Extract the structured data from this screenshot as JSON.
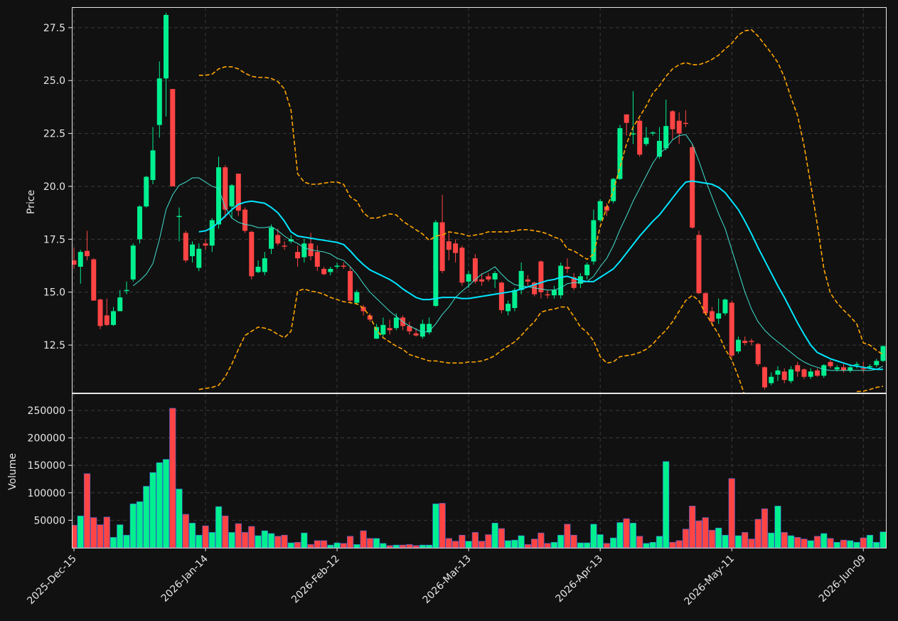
{
  "chart_data": {
    "type": "candlestick",
    "ylabel": "Price",
    "volume_ylabel": "Volume",
    "up_color": "#00f090",
    "down_color": "#ff4444",
    "grid": true,
    "categories": [
      "2025-Dec-15",
      null,
      null,
      null,
      null,
      null,
      null,
      null,
      null,
      null,
      null,
      null,
      null,
      null,
      null,
      null,
      null,
      null,
      null,
      null,
      "2026-Jan-14",
      null,
      null,
      null,
      null,
      null,
      null,
      null,
      null,
      null,
      null,
      null,
      null,
      null,
      null,
      null,
      null,
      null,
      null,
      null,
      "2026-Feb-12",
      null,
      null,
      null,
      null,
      null,
      null,
      null,
      null,
      null,
      null,
      null,
      null,
      null,
      null,
      null,
      null,
      null,
      null,
      null,
      "2026-Mar-13",
      null,
      null,
      null,
      null,
      null,
      null,
      null,
      null,
      null,
      null,
      null,
      null,
      null,
      null,
      null,
      null,
      null,
      null,
      null,
      "2026-Apr-13",
      null,
      null,
      null,
      null,
      null,
      null,
      null,
      null,
      null,
      null,
      null,
      null,
      null,
      null,
      null,
      null,
      null,
      null,
      null,
      "2026-May-11",
      null,
      null,
      null,
      null,
      null,
      null,
      null,
      null,
      null,
      null,
      null,
      null,
      null,
      null,
      null,
      null,
      null,
      null,
      null,
      "2026-Jun-09",
      null,
      null,
      null
    ],
    "open": [
      16.5,
      16.2,
      16.95,
      16.55,
      14.65,
      13.9,
      13.45,
      14.1,
      15.05,
      15.6,
      17.5,
      19.05,
      20.3,
      22.9,
      25.1,
      24.6,
      18.55,
      17.8,
      16.7,
      16.15,
      17.3,
      17.2,
      18.2,
      20.9,
      19.05,
      20.6,
      18.9,
      17.85,
      15.95,
      15.95,
      17.05,
      17.7,
      17.2,
      17.4,
      16.9,
      16.65,
      17.3,
      16.9,
      16.1,
      15.95,
      16.2,
      16.25,
      16.0,
      14.5,
      14.3,
      13.9,
      12.8,
      13.0,
      13.3,
      13.3,
      13.8,
      13.4,
      13.05,
      12.9,
      13.1,
      14.35,
      18.3,
      17.4,
      17.3,
      17.1,
      15.5,
      16.6,
      15.6,
      15.75,
      15.6,
      15.45,
      14.1,
      14.25,
      15.1,
      15.6,
      15.45,
      16.45,
      14.9,
      14.85,
      14.85,
      16.2,
      15.7,
      15.4,
      15.8,
      16.45,
      18.4,
      19.05,
      19.3,
      20.35,
      23.4,
      22.45,
      23.1,
      22.0,
      22.5,
      21.4,
      21.8,
      23.55,
      23.1,
      23.0,
      21.85,
      17.7,
      14.95,
      14.1,
      13.75,
      14.0,
      14.5,
      12.2,
      12.7,
      12.7,
      12.55,
      11.45,
      10.7,
      11.1,
      11.25,
      10.8,
      11.55,
      11.35,
      11.0,
      11.3,
      11.05,
      11.7,
      11.35,
      11.45,
      11.3,
      11.55,
      11.4,
      11.45,
      11.55,
      11.75
    ],
    "high": [
      17.1,
      17.0,
      17.9,
      16.6,
      14.7,
      14.7,
      14.3,
      15.1,
      15.5,
      17.3,
      19.1,
      20.5,
      22.8,
      25.9,
      28.2,
      24.6,
      19.0,
      17.9,
      17.4,
      17.3,
      17.5,
      18.5,
      21.4,
      21.0,
      20.1,
      20.6,
      19.0,
      17.9,
      16.5,
      16.9,
      18.2,
      18.0,
      17.4,
      17.7,
      17.2,
      17.5,
      17.8,
      17.2,
      16.2,
      16.2,
      16.4,
      16.4,
      16.2,
      15.1,
      14.4,
      14.0,
      13.5,
      13.8,
      13.7,
      14.0,
      13.9,
      13.6,
      13.3,
      13.7,
      13.8,
      18.4,
      19.6,
      17.8,
      17.5,
      17.2,
      16.0,
      16.8,
      15.9,
      15.9,
      16.0,
      15.5,
      14.6,
      15.2,
      16.4,
      15.8,
      15.5,
      16.5,
      15.1,
      15.3,
      16.4,
      16.6,
      15.9,
      15.9,
      16.4,
      18.9,
      19.4,
      19.2,
      20.4,
      22.9,
      23.4,
      24.5,
      23.2,
      22.8,
      22.6,
      22.8,
      24.1,
      23.6,
      23.5,
      23.6,
      22.0,
      17.9,
      15.0,
      14.3,
      14.7,
      14.7,
      14.6,
      12.9,
      12.9,
      12.8,
      12.6,
      11.5,
      11.2,
      11.5,
      11.4,
      11.5,
      11.7,
      11.4,
      11.4,
      11.4,
      11.6,
      11.8,
      11.55,
      11.6,
      11.6,
      11.7,
      11.7,
      11.6,
      11.85,
      12.5
    ],
    "low": [
      16.1,
      15.4,
      16.5,
      14.6,
      13.25,
      13.4,
      13.4,
      14.1,
      14.9,
      15.5,
      17.3,
      19.0,
      20.1,
      22.3,
      23.3,
      20.0,
      17.4,
      16.4,
      16.4,
      16.0,
      17.0,
      16.9,
      18.0,
      18.5,
      18.5,
      18.6,
      17.8,
      15.6,
      15.9,
      15.8,
      16.8,
      17.2,
      17.0,
      17.3,
      16.2,
      16.4,
      16.5,
      16.0,
      15.8,
      15.8,
      16.1,
      16.1,
      14.5,
      14.4,
      13.9,
      13.6,
      12.8,
      12.9,
      13.0,
      13.2,
      13.2,
      13.0,
      12.9,
      12.8,
      13.0,
      14.3,
      15.9,
      16.5,
      16.4,
      15.3,
      15.2,
      15.4,
      15.3,
      15.5,
      15.2,
      14.0,
      13.9,
      14.1,
      14.9,
      15.3,
      14.8,
      14.7,
      14.7,
      14.7,
      14.7,
      15.9,
      15.1,
      15.2,
      15.6,
      16.3,
      18.3,
      18.6,
      19.2,
      20.3,
      22.4,
      22.0,
      21.4,
      21.9,
      22.4,
      21.3,
      21.7,
      22.2,
      22.0,
      22.8,
      18.0,
      14.9,
      13.9,
      13.4,
      13.5,
      13.9,
      11.9,
      12.1,
      12.5,
      12.5,
      11.5,
      10.4,
      10.6,
      10.8,
      10.7,
      10.7,
      11.0,
      10.9,
      10.9,
      11.0,
      10.95,
      11.4,
      11.25,
      11.2,
      11.2,
      11.4,
      11.2,
      11.35,
      11.45,
      11.7
    ],
    "close": [
      16.3,
      16.9,
      16.7,
      14.6,
      13.4,
      13.45,
      14.1,
      14.75,
      15.1,
      17.2,
      19.05,
      20.45,
      21.7,
      25.1,
      28.1,
      20.0,
      18.6,
      16.5,
      17.25,
      17.05,
      17.2,
      18.4,
      20.9,
      18.9,
      20.05,
      18.85,
      17.9,
      15.75,
      16.2,
      16.6,
      18.05,
      17.3,
      17.15,
      17.5,
      16.6,
      17.3,
      16.7,
      16.2,
      15.85,
      16.1,
      16.25,
      16.2,
      14.6,
      15.0,
      14.1,
      13.7,
      13.35,
      13.45,
      13.2,
      13.8,
      13.4,
      13.15,
      12.95,
      13.5,
      13.5,
      18.3,
      16.0,
      17.0,
      16.85,
      15.45,
      15.85,
      15.5,
      15.5,
      15.6,
      15.9,
      14.15,
      14.45,
      15.1,
      16.0,
      15.5,
      14.9,
      15.0,
      14.85,
      15.1,
      16.25,
      16.1,
      15.2,
      15.75,
      16.3,
      18.4,
      19.3,
      18.85,
      20.35,
      22.75,
      23.0,
      22.5,
      21.5,
      22.3,
      22.55,
      22.15,
      22.85,
      22.7,
      22.5,
      22.95,
      18.05,
      14.95,
      14.0,
      13.6,
      14.0,
      14.65,
      12.0,
      12.75,
      12.6,
      12.65,
      11.6,
      10.5,
      11.0,
      11.3,
      10.85,
      11.35,
      11.25,
      11.0,
      11.25,
      11.05,
      11.55,
      11.5,
      11.45,
      11.3,
      11.45,
      11.6,
      11.35,
      11.5,
      11.75,
      12.45
    ],
    "volume": [
      41000,
      58000,
      135000,
      55000,
      42000,
      56000,
      19000,
      42000,
      23000,
      80000,
      84000,
      112000,
      137000,
      155000,
      161000,
      254000,
      107000,
      61000,
      45000,
      23000,
      40000,
      28000,
      75000,
      58000,
      28000,
      44000,
      28000,
      39000,
      22000,
      31000,
      26000,
      21000,
      23000,
      9000,
      10000,
      27000,
      6000,
      13000,
      13000,
      5000,
      9000,
      8000,
      21000,
      6000,
      31000,
      17000,
      17000,
      8000,
      4000,
      5000,
      5000,
      6000,
      4000,
      5000,
      5000,
      80000,
      81000,
      17000,
      12000,
      23000,
      12000,
      28000,
      12000,
      24000,
      45000,
      35000,
      13000,
      14000,
      22000,
      6000,
      16000,
      27000,
      8000,
      10000,
      23000,
      43000,
      23000,
      9000,
      9000,
      43000,
      24000,
      8000,
      18000,
      46000,
      53000,
      45000,
      21000,
      8000,
      10000,
      21000,
      157000,
      10000,
      13000,
      34000,
      76000,
      49000,
      55000,
      32000,
      36000,
      23000,
      126000,
      22000,
      28000,
      16000,
      52000,
      71000,
      27000,
      76000,
      28000,
      22000,
      19000,
      16000,
      13000,
      21000,
      26000,
      17000,
      10000,
      14000,
      13000,
      10000,
      18000,
      23000,
      10000,
      29000
    ],
    "overlays": [
      {
        "color": "#40e0d0",
        "style": "thin",
        "values": [
          null,
          null,
          null,
          null,
          null,
          null,
          null,
          null,
          null,
          15.3,
          15.55,
          15.85,
          16.35,
          17.5,
          18.9,
          19.6,
          20.05,
          20.2,
          20.4,
          20.4,
          20.2,
          20.0,
          19.9,
          19.0,
          18.5,
          18.3,
          18.2,
          18.15,
          18.05,
          18.05,
          18.1,
          17.9,
          17.65,
          17.45,
          17.3,
          17.1,
          17.0,
          16.95,
          16.9,
          16.8,
          16.6,
          16.5,
          16.2,
          15.85,
          15.4,
          15.0,
          14.7,
          14.4,
          14.1,
          13.85,
          13.6,
          13.4,
          13.25,
          13.1,
          13.15,
          13.5,
          13.95,
          14.3,
          14.75,
          15.05,
          15.3,
          15.6,
          15.85,
          16.0,
          16.2,
          15.85,
          15.55,
          15.35,
          15.3,
          15.25,
          15.2,
          15.15,
          15.1,
          15.1,
          15.2,
          15.4,
          15.45,
          15.45,
          15.5,
          15.75,
          16.2,
          16.6,
          17.2,
          17.95,
          18.6,
          19.3,
          19.9,
          20.5,
          21.1,
          21.55,
          21.8,
          22.2,
          22.4,
          22.45,
          22.0,
          21.2,
          20.3,
          19.5,
          18.7,
          18.0,
          17.0,
          16.0,
          15.0,
          14.2,
          13.6,
          13.2,
          12.9,
          12.65,
          12.4,
          12.15,
          11.9,
          11.7,
          11.55,
          11.45,
          11.35,
          11.3,
          11.3,
          11.3,
          11.3,
          11.3,
          11.3,
          11.3,
          11.35,
          11.5
        ]
      },
      {
        "color": "#00e5ff",
        "style": "thick",
        "values": [
          null,
          null,
          null,
          null,
          null,
          null,
          null,
          null,
          null,
          null,
          null,
          null,
          null,
          null,
          null,
          null,
          null,
          null,
          null,
          17.85,
          17.9,
          18.05,
          18.3,
          18.6,
          18.9,
          19.15,
          19.25,
          19.3,
          19.25,
          19.2,
          19.0,
          18.75,
          18.35,
          17.85,
          17.65,
          17.6,
          17.55,
          17.5,
          17.45,
          17.4,
          17.35,
          17.25,
          16.95,
          16.6,
          16.3,
          16.05,
          15.9,
          15.75,
          15.6,
          15.4,
          15.15,
          14.95,
          14.75,
          14.65,
          14.65,
          14.7,
          14.75,
          14.75,
          14.75,
          14.7,
          14.7,
          14.75,
          14.8,
          14.85,
          14.9,
          14.95,
          15.0,
          15.05,
          15.15,
          15.25,
          15.35,
          15.45,
          15.55,
          15.6,
          15.7,
          15.75,
          15.65,
          15.55,
          15.5,
          15.5,
          15.7,
          15.9,
          16.1,
          16.45,
          16.85,
          17.25,
          17.65,
          18.0,
          18.35,
          18.65,
          19.05,
          19.45,
          19.85,
          20.2,
          20.25,
          20.2,
          20.15,
          20.1,
          19.95,
          19.7,
          19.3,
          18.9,
          18.35,
          17.75,
          17.1,
          16.5,
          15.9,
          15.3,
          14.75,
          14.15,
          13.55,
          13.0,
          12.5,
          12.15,
          12.0,
          11.85,
          11.75,
          11.65,
          11.55,
          11.5,
          11.45,
          11.4,
          11.35,
          11.35
        ]
      },
      {
        "color": "#ffa500",
        "style": "dashed",
        "values": [
          null,
          null,
          null,
          null,
          null,
          null,
          null,
          null,
          null,
          null,
          null,
          null,
          null,
          null,
          null,
          null,
          null,
          null,
          null,
          25.25,
          25.25,
          25.3,
          25.55,
          25.65,
          25.65,
          25.55,
          25.35,
          25.2,
          25.15,
          25.15,
          25.1,
          24.95,
          24.6,
          23.6,
          20.6,
          20.2,
          20.1,
          20.1,
          20.15,
          20.2,
          20.2,
          20.1,
          19.5,
          19.3,
          18.75,
          18.5,
          18.5,
          18.6,
          18.7,
          18.65,
          18.35,
          18.15,
          17.95,
          17.75,
          17.45,
          17.65,
          17.7,
          17.85,
          17.8,
          17.75,
          17.65,
          17.7,
          17.75,
          17.85,
          17.85,
          17.85,
          17.85,
          17.9,
          17.95,
          17.95,
          17.9,
          17.85,
          17.75,
          17.6,
          17.5,
          17.05,
          16.95,
          16.75,
          16.55,
          16.8,
          18.1,
          19.0,
          19.8,
          20.9,
          22.0,
          22.8,
          23.3,
          23.8,
          24.4,
          24.75,
          25.2,
          25.55,
          25.75,
          25.85,
          25.75,
          25.75,
          25.85,
          26.0,
          26.2,
          26.5,
          26.75,
          27.15,
          27.35,
          27.4,
          27.1,
          26.7,
          26.3,
          25.85,
          25.15,
          24.2,
          23.35,
          21.9,
          20.1,
          18.2,
          16.1,
          14.95,
          14.5,
          14.15,
          13.85,
          13.5,
          12.6,
          12.5,
          12.25,
          12.05
        ]
      },
      {
        "color": "#ffa500",
        "style": "dashed",
        "values": [
          null,
          null,
          null,
          null,
          null,
          null,
          null,
          null,
          null,
          null,
          null,
          null,
          null,
          null,
          null,
          null,
          null,
          null,
          null,
          10.4,
          10.45,
          10.5,
          10.6,
          11.0,
          11.6,
          12.3,
          12.95,
          13.15,
          13.35,
          13.3,
          13.2,
          13.0,
          12.85,
          13.15,
          15.05,
          15.15,
          15.05,
          15.0,
          14.9,
          14.75,
          14.65,
          14.55,
          14.5,
          14.45,
          14.25,
          13.85,
          13.2,
          12.85,
          12.65,
          12.45,
          12.3,
          12.05,
          11.95,
          11.85,
          11.75,
          11.75,
          11.7,
          11.65,
          11.65,
          11.65,
          11.7,
          11.7,
          11.75,
          11.85,
          12.0,
          12.25,
          12.45,
          12.65,
          12.95,
          13.3,
          13.6,
          14.05,
          14.15,
          14.2,
          14.3,
          14.3,
          13.85,
          13.35,
          13.1,
          12.7,
          11.95,
          11.65,
          11.7,
          11.95,
          12.0,
          12.05,
          12.15,
          12.3,
          12.55,
          12.9,
          13.2,
          13.6,
          14.1,
          14.6,
          14.85,
          14.6,
          14.0,
          13.5,
          13.0,
          12.3,
          11.8,
          11.0,
          10.1,
          null,
          null,
          null,
          null,
          null,
          null,
          null,
          null,
          null,
          null,
          null,
          null,
          null,
          null,
          null,
          null,
          10.3,
          10.32,
          10.4,
          10.5,
          10.55
        ]
      }
    ],
    "ylim": [
      10.25,
      28.47
    ],
    "yticks": [
      12.5,
      {
        "value": 15,
        "label": "15.0"
      },
      17.5,
      {
        "value": 20,
        "label": "20.0"
      },
      22.5,
      {
        "value": 25,
        "label": "25.0"
      },
      27.5
    ],
    "volume_ylim": [
      0,
      281000
    ],
    "volume_yticks": [
      50000,
      100000,
      150000,
      200000,
      250000
    ]
  }
}
